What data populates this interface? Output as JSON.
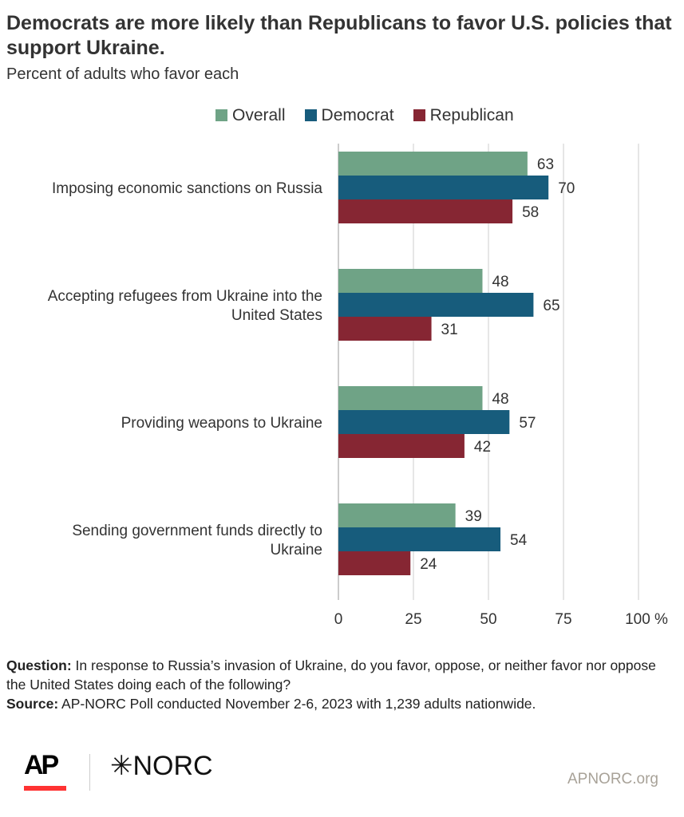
{
  "header": {
    "title": "Democrats are more likely than Republicans to favor U.S. policies that support Ukraine.",
    "subtitle": "Percent of adults who favor each"
  },
  "colors": {
    "Overall": "#6fa386",
    "Democrat": "#175c7c",
    "Republican": "#862633"
  },
  "chart_data": {
    "type": "bar",
    "orientation": "horizontal",
    "title": "Democrats are more likely than Republicans to favor U.S. policies that support Ukraine.",
    "subtitle": "Percent of adults who favor each",
    "categories": [
      [
        "Imposing economic sanctions on Russia"
      ],
      [
        "Accepting refugees from Ukraine into the",
        "United States"
      ],
      [
        "Providing weapons to Ukraine"
      ],
      [
        "Sending government funds directly to",
        "Ukraine"
      ]
    ],
    "series": [
      {
        "name": "Overall",
        "values": [
          63,
          48,
          48,
          39
        ]
      },
      {
        "name": "Democrat",
        "values": [
          70,
          65,
          57,
          54
        ]
      },
      {
        "name": "Republican",
        "values": [
          58,
          31,
          42,
          24
        ]
      }
    ],
    "xlim": [
      0,
      100
    ],
    "xticks": [
      "0",
      "25",
      "50",
      "75",
      "100 %"
    ],
    "grid": true,
    "legend": "top"
  },
  "notes": {
    "question_label": "Question:",
    "question": " In response to Russia’s invasion of Ukraine, do you favor, oppose, or neither favor nor oppose the United States doing each of the following?",
    "source_label": "Source:",
    "source": " AP-NORC Poll conducted November 2-6, 2023 with 1,239 adults nationwide."
  },
  "footer": {
    "logo_ap": "AP",
    "logo_norc": "✳NORC",
    "site": "APNORC.org"
  }
}
